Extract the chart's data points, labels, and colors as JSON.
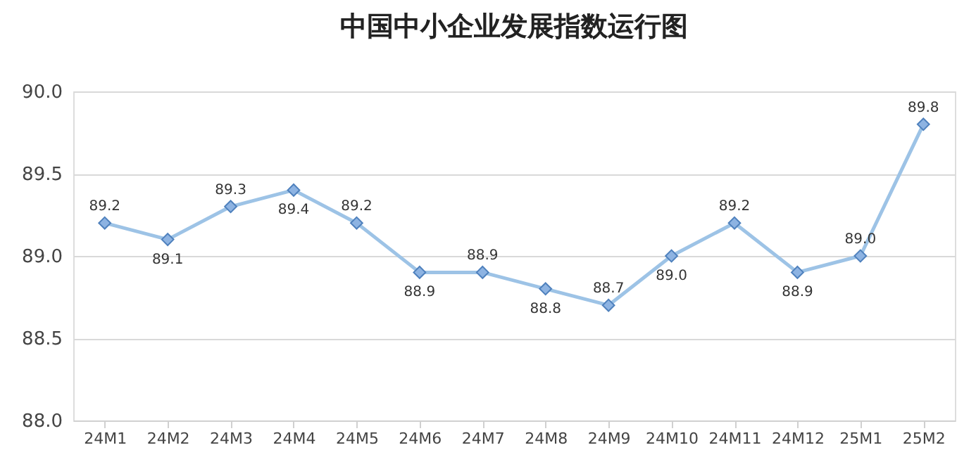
{
  "chart_data": {
    "type": "line",
    "title": "中国中小企业发展指数运行图",
    "categories": [
      "24M1",
      "24M2",
      "24M3",
      "24M4",
      "24M5",
      "24M6",
      "24M7",
      "24M8",
      "24M9",
      "24M10",
      "24M11",
      "24M12",
      "25M1",
      "25M2"
    ],
    "series": [
      {
        "color": "#9dc3e6",
        "values": [
          89.2,
          89.1,
          89.3,
          89.4,
          89.2,
          88.9,
          88.9,
          88.8,
          88.7,
          89.0,
          89.2,
          88.9,
          89.0,
          89.8
        ],
        "value_labels": [
          "89.2",
          "89.1",
          "89.3",
          "89.4",
          "89.2",
          "88.9",
          "88.9",
          "88.8",
          "88.7",
          "89.0",
          "89.2",
          "88.9",
          "89.0",
          "89.8"
        ]
      }
    ],
    "ylim": [
      88.0,
      90.0
    ],
    "yticks": [
      {
        "value": 88.0,
        "label": "88.0"
      },
      {
        "value": 88.5,
        "label": "88.5"
      },
      {
        "value": 89.0,
        "label": "89.0"
      },
      {
        "value": 89.5,
        "label": "89.5"
      },
      {
        "value": 90.0,
        "label": "90.0"
      }
    ],
    "grid": "y",
    "marker": "diamond",
    "line_style": "solid",
    "legend": false
  }
}
